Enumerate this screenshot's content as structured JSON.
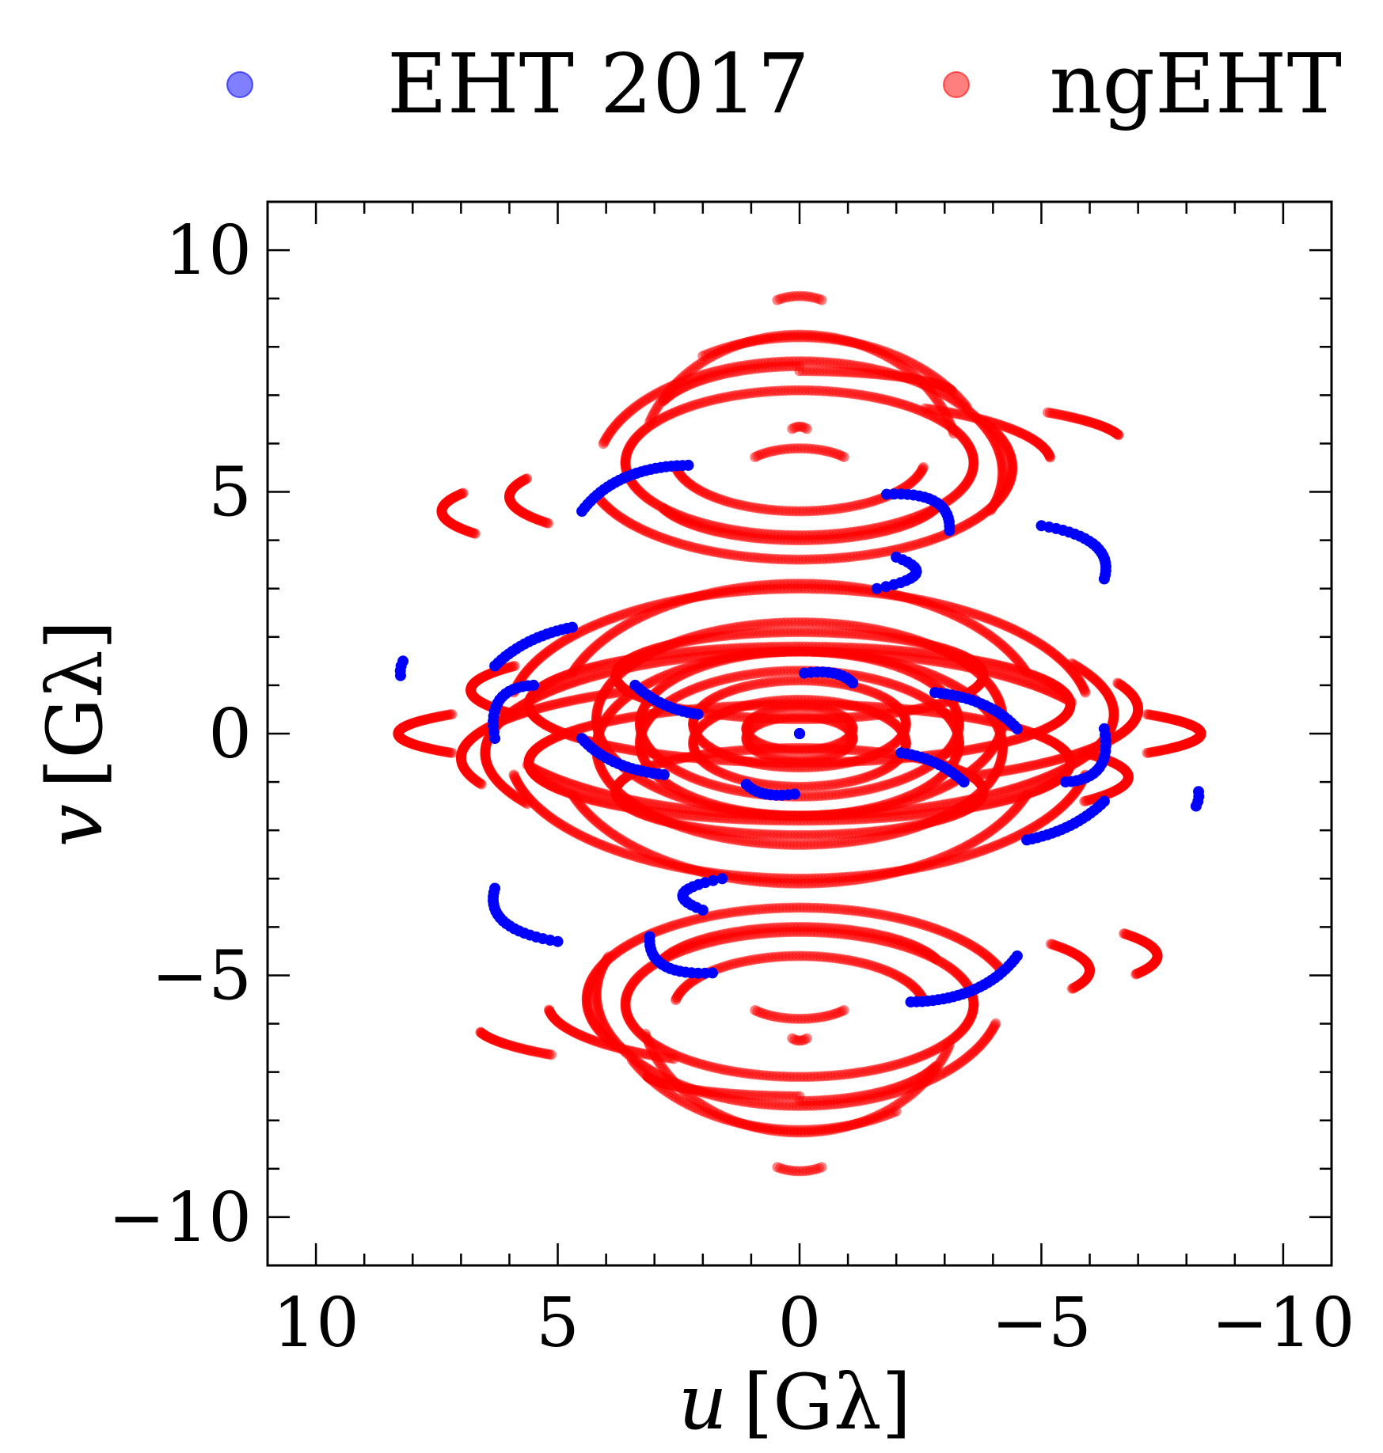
{
  "chart_data": {
    "type": "scatter",
    "title": "",
    "xlabel": "u [Gλ]",
    "ylabel": "v [Gλ]",
    "xlabel_var": "u",
    "ylabel_var": "v",
    "label_unit": "[Gλ]",
    "xlim": [
      11,
      -11
    ],
    "ylim": [
      -11,
      11
    ],
    "x_ticks": [
      10,
      5,
      0,
      -5,
      -10
    ],
    "y_ticks": [
      10,
      5,
      0,
      -5,
      -10
    ],
    "x_tick_labels": [
      "10",
      "5",
      "0",
      "−5",
      "−10"
    ],
    "y_tick_labels": [
      "10",
      "5",
      "0",
      "−5",
      "−10"
    ],
    "minor_tick_step": 1,
    "grid": false,
    "legend_placement": "top, outside, horizontal",
    "conjugate_symmetric": true,
    "series": [
      {
        "name": "EHT 2017",
        "color": "#0000ff",
        "alpha": 0.5,
        "marker_alpha": 1.0,
        "tracks": [
          [
            [
              2.3,
              5.55
            ],
            [
              3.6,
              5.3
            ],
            [
              4.5,
              4.6
            ]
          ],
          [
            [
              -1.8,
              4.95
            ],
            [
              -2.8,
              4.8
            ],
            [
              -3.1,
              4.2
            ]
          ],
          [
            [
              -5.0,
              4.3
            ],
            [
              -6.1,
              3.9
            ],
            [
              -6.3,
              3.2
            ]
          ],
          [
            [
              -2.0,
              3.65
            ],
            [
              -2.4,
              3.3
            ],
            [
              -1.6,
              3.0
            ]
          ],
          [
            [
              4.7,
              2.2
            ],
            [
              5.6,
              1.9
            ],
            [
              6.3,
              1.4
            ]
          ],
          [
            [
              8.2,
              1.5
            ],
            [
              8.25,
              1.35
            ],
            [
              8.25,
              1.2
            ]
          ],
          [
            [
              5.5,
              1.0
            ],
            [
              6.2,
              0.7
            ],
            [
              6.3,
              -0.1
            ]
          ],
          [
            [
              3.4,
              1.0
            ],
            [
              2.8,
              0.6
            ],
            [
              2.1,
              0.4
            ]
          ],
          [
            [
              4.5,
              -0.1
            ],
            [
              3.8,
              -0.6
            ],
            [
              2.8,
              -0.85
            ]
          ],
          [
            [
              -0.1,
              1.25
            ],
            [
              -0.7,
              1.25
            ],
            [
              -1.1,
              1.05
            ]
          ],
          [
            [
              0,
              0
            ],
            [
              0,
              0
            ],
            [
              0,
              0
            ]
          ]
        ]
      },
      {
        "name": "ngEHT",
        "color": "#ff0000",
        "alpha": 0.5,
        "ellipse_tracks": [
          {
            "v0": 5.5,
            "a": 3.3,
            "b": 2.75,
            "t0": 20,
            "t1": 165
          },
          {
            "v0": 5.4,
            "a": 4.2,
            "b": 2.3,
            "t0": 15,
            "t1": 200
          },
          {
            "v0": 5.5,
            "a": 4.4,
            "b": 1.9,
            "t0": 150,
            "t1": 340
          },
          {
            "v0": 5.6,
            "a": 3.6,
            "b": 1.5,
            "t0": 0,
            "t1": 360
          },
          {
            "v0": 5.7,
            "a": 2.6,
            "b": 1.1,
            "t0": 190,
            "t1": 350
          },
          {
            "v0": 5.3,
            "a": 4.0,
            "b": 2.9,
            "t0": 60,
            "t1": 150
          },
          {
            "v0": 5.0,
            "a": 3.0,
            "b": 1.0,
            "t0": 200,
            "t1": 340
          },
          {
            "v0": 5.6,
            "a": 5.2,
            "b": 1.3,
            "t0": 120,
            "t1": 175
          },
          {
            "v0": 4.9,
            "a": 6.0,
            "b": 1.1,
            "t0": 330,
            "t1": 380
          },
          {
            "v0": 4.6,
            "a": 7.4,
            "b": 1.1,
            "t0": -25,
            "t1": 20
          },
          {
            "v0": 6.0,
            "a": 6.7,
            "b": 1.0,
            "t0": 140,
            "t1": 170
          },
          {
            "v0": 0.4,
            "a": 6.0,
            "b": 2.6,
            "t0": 10,
            "t1": 170
          },
          {
            "v0": 0.4,
            "a": 6.5,
            "b": 2.1,
            "t0": 150,
            "t1": 330
          },
          {
            "v0": 0.3,
            "a": 5.0,
            "b": 2.8,
            "t0": 20,
            "t1": 160
          },
          {
            "v0": 0.3,
            "a": 4.2,
            "b": 2.0,
            "t0": 0,
            "t1": 360
          },
          {
            "v0": 0.2,
            "a": 3.3,
            "b": 1.5,
            "t0": 0,
            "t1": 360
          },
          {
            "v0": 0.2,
            "a": 2.2,
            "b": 0.9,
            "t0": 0,
            "t1": 360
          },
          {
            "v0": 0.1,
            "a": 1.1,
            "b": 0.45,
            "t0": 0,
            "t1": 360
          },
          {
            "v0": 0.5,
            "a": 7.0,
            "b": 1.6,
            "t0": 160,
            "t1": 240
          },
          {
            "v0": 0.6,
            "a": 5.6,
            "b": 1.2,
            "t0": 0,
            "t1": 360
          },
          {
            "v0": 1.2,
            "a": 3.8,
            "b": 0.9,
            "t0": 0,
            "t1": 360
          },
          {
            "v0": 0.0,
            "a": 8.3,
            "b": 0.8,
            "t0": 150,
            "t1": 210
          },
          {
            "v0": 0.9,
            "a": 6.8,
            "b": 1.0,
            "t0": -30,
            "t1": 30
          },
          {
            "v0": 8.6,
            "a": 0.8,
            "b": 0.45,
            "t0": 55,
            "t1": 125
          },
          {
            "v0": 6.0,
            "a": 0.3,
            "b": 0.35,
            "t0": 60,
            "t1": 120
          },
          {
            "v0": 5.4,
            "a": 1.2,
            "b": 0.5,
            "t0": 40,
            "t1": 140
          },
          {
            "v0": 7.0,
            "a": 3.2,
            "b": 0.5,
            "t0": 90,
            "t1": 170
          },
          {
            "v0": 6.5,
            "a": 3.0,
            "b": 1.1,
            "t0": 20,
            "t1": 90
          }
        ]
      }
    ]
  }
}
